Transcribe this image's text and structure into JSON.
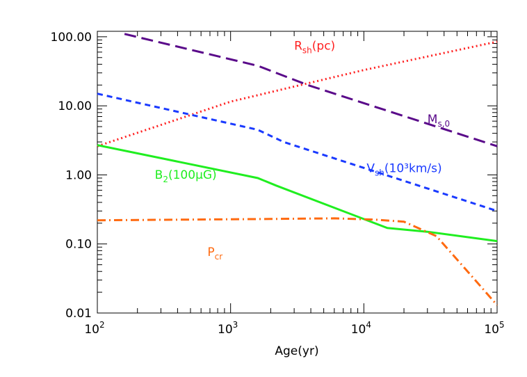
{
  "chart_data": {
    "type": "line",
    "title": "",
    "xlabel": "Age(yr)",
    "ylabel": "",
    "xscale": "log",
    "yscale": "log",
    "xlim": [
      100,
      100000
    ],
    "ylim": [
      0.01,
      120
    ],
    "grid": false,
    "legend": "none",
    "x_ticks": [
      {
        "value": 100,
        "base": "10",
        "exp": "2"
      },
      {
        "value": 1000,
        "base": "10",
        "exp": "3"
      },
      {
        "value": 10000,
        "base": "10",
        "exp": "4"
      },
      {
        "value": 100000,
        "base": "10",
        "exp": "5"
      }
    ],
    "y_ticks": [
      {
        "value": 0.01,
        "label": "0.01"
      },
      {
        "value": 0.1,
        "label": "0.10"
      },
      {
        "value": 1,
        "label": "1.00"
      },
      {
        "value": 10,
        "label": "10.00"
      },
      {
        "value": 100,
        "label": "100.00"
      }
    ],
    "series": [
      {
        "id": "rsh",
        "color": "#ff2020",
        "dash": "dotted",
        "label_main": "R",
        "label_sub": "sh",
        "label_rest": "(pc)",
        "label_at": {
          "x": 3000,
          "y": 65
        },
        "x": [
          100,
          1000,
          10000,
          100000
        ],
        "y": [
          2.6,
          11.5,
          33,
          85
        ]
      },
      {
        "id": "ms0",
        "color": "#5a0a8a",
        "dash": "long",
        "label_main": "M",
        "label_sub": "s,0",
        "label_rest": "",
        "label_at": {
          "x": 30000,
          "y": 5.6
        },
        "x": [
          160,
          1600,
          3800,
          100000
        ],
        "y": [
          110,
          38,
          20,
          2.6
        ]
      },
      {
        "id": "vsh",
        "color": "#1a3aff",
        "dash": "short",
        "label_main": "V",
        "label_sub": "sh",
        "label_rest": "(10³km/s)",
        "label_at": {
          "x": 10500,
          "y": 1.1
        },
        "x": [
          100,
          1600,
          2500,
          100000
        ],
        "y": [
          15,
          4.5,
          3.0,
          0.3
        ]
      },
      {
        "id": "b2",
        "color": "#20ee20",
        "dash": "solid",
        "label_main": "B",
        "label_sub": "2",
        "label_rest": "(100μG)",
        "label_at": {
          "x": 270,
          "y": 0.88
        },
        "x": [
          100,
          1600,
          2200,
          15000,
          30000,
          100000
        ],
        "y": [
          2.7,
          0.9,
          0.7,
          0.17,
          0.15,
          0.11
        ]
      },
      {
        "id": "pcr",
        "color": "#ff6a10",
        "dash": "dashdot",
        "label_main": "P",
        "label_sub": "cr",
        "label_rest": "",
        "label_at": {
          "x": 670,
          "y": 0.067
        },
        "x": [
          100,
          2000,
          6000,
          12000,
          20000,
          35000,
          60000,
          100000
        ],
        "y": [
          0.22,
          0.23,
          0.235,
          0.225,
          0.21,
          0.13,
          0.04,
          0.013
        ]
      }
    ]
  }
}
